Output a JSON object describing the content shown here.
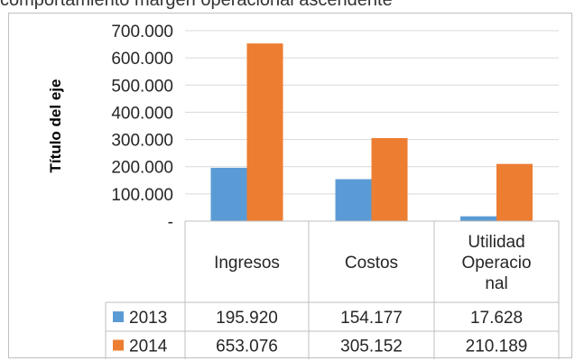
{
  "page": {
    "caption": "comportamiento margen operacional ascendente"
  },
  "chart_data": {
    "type": "bar",
    "title": "",
    "xlabel": "",
    "ylabel": "Título del eje",
    "ylim": [
      0,
      700000
    ],
    "yticks": [
      0,
      100000,
      200000,
      300000,
      400000,
      500000,
      600000,
      700000
    ],
    "ytick_labels": [
      "-",
      "100.000",
      "200.000",
      "300.000",
      "400.000",
      "500.000",
      "600.000",
      "700.000"
    ],
    "categories": [
      "Ingresos",
      "Costos",
      "Utilidad Operacional"
    ],
    "category_lines": [
      [
        "Ingresos"
      ],
      [
        "Costos"
      ],
      [
        "Utilidad",
        "Operacio",
        "nal"
      ]
    ],
    "series": [
      {
        "name": "2013",
        "color": "#5b9bd5",
        "values": [
          195920,
          154177,
          17628
        ],
        "labels": [
          "195.920",
          "154.177",
          "17.628"
        ]
      },
      {
        "name": "2014",
        "color": "#ed7d31",
        "values": [
          653076,
          305152,
          210189
        ],
        "labels": [
          "653.076",
          "305.152",
          "210.189"
        ]
      }
    ],
    "gridlines": true,
    "legend": "data-table",
    "data_table": true
  }
}
